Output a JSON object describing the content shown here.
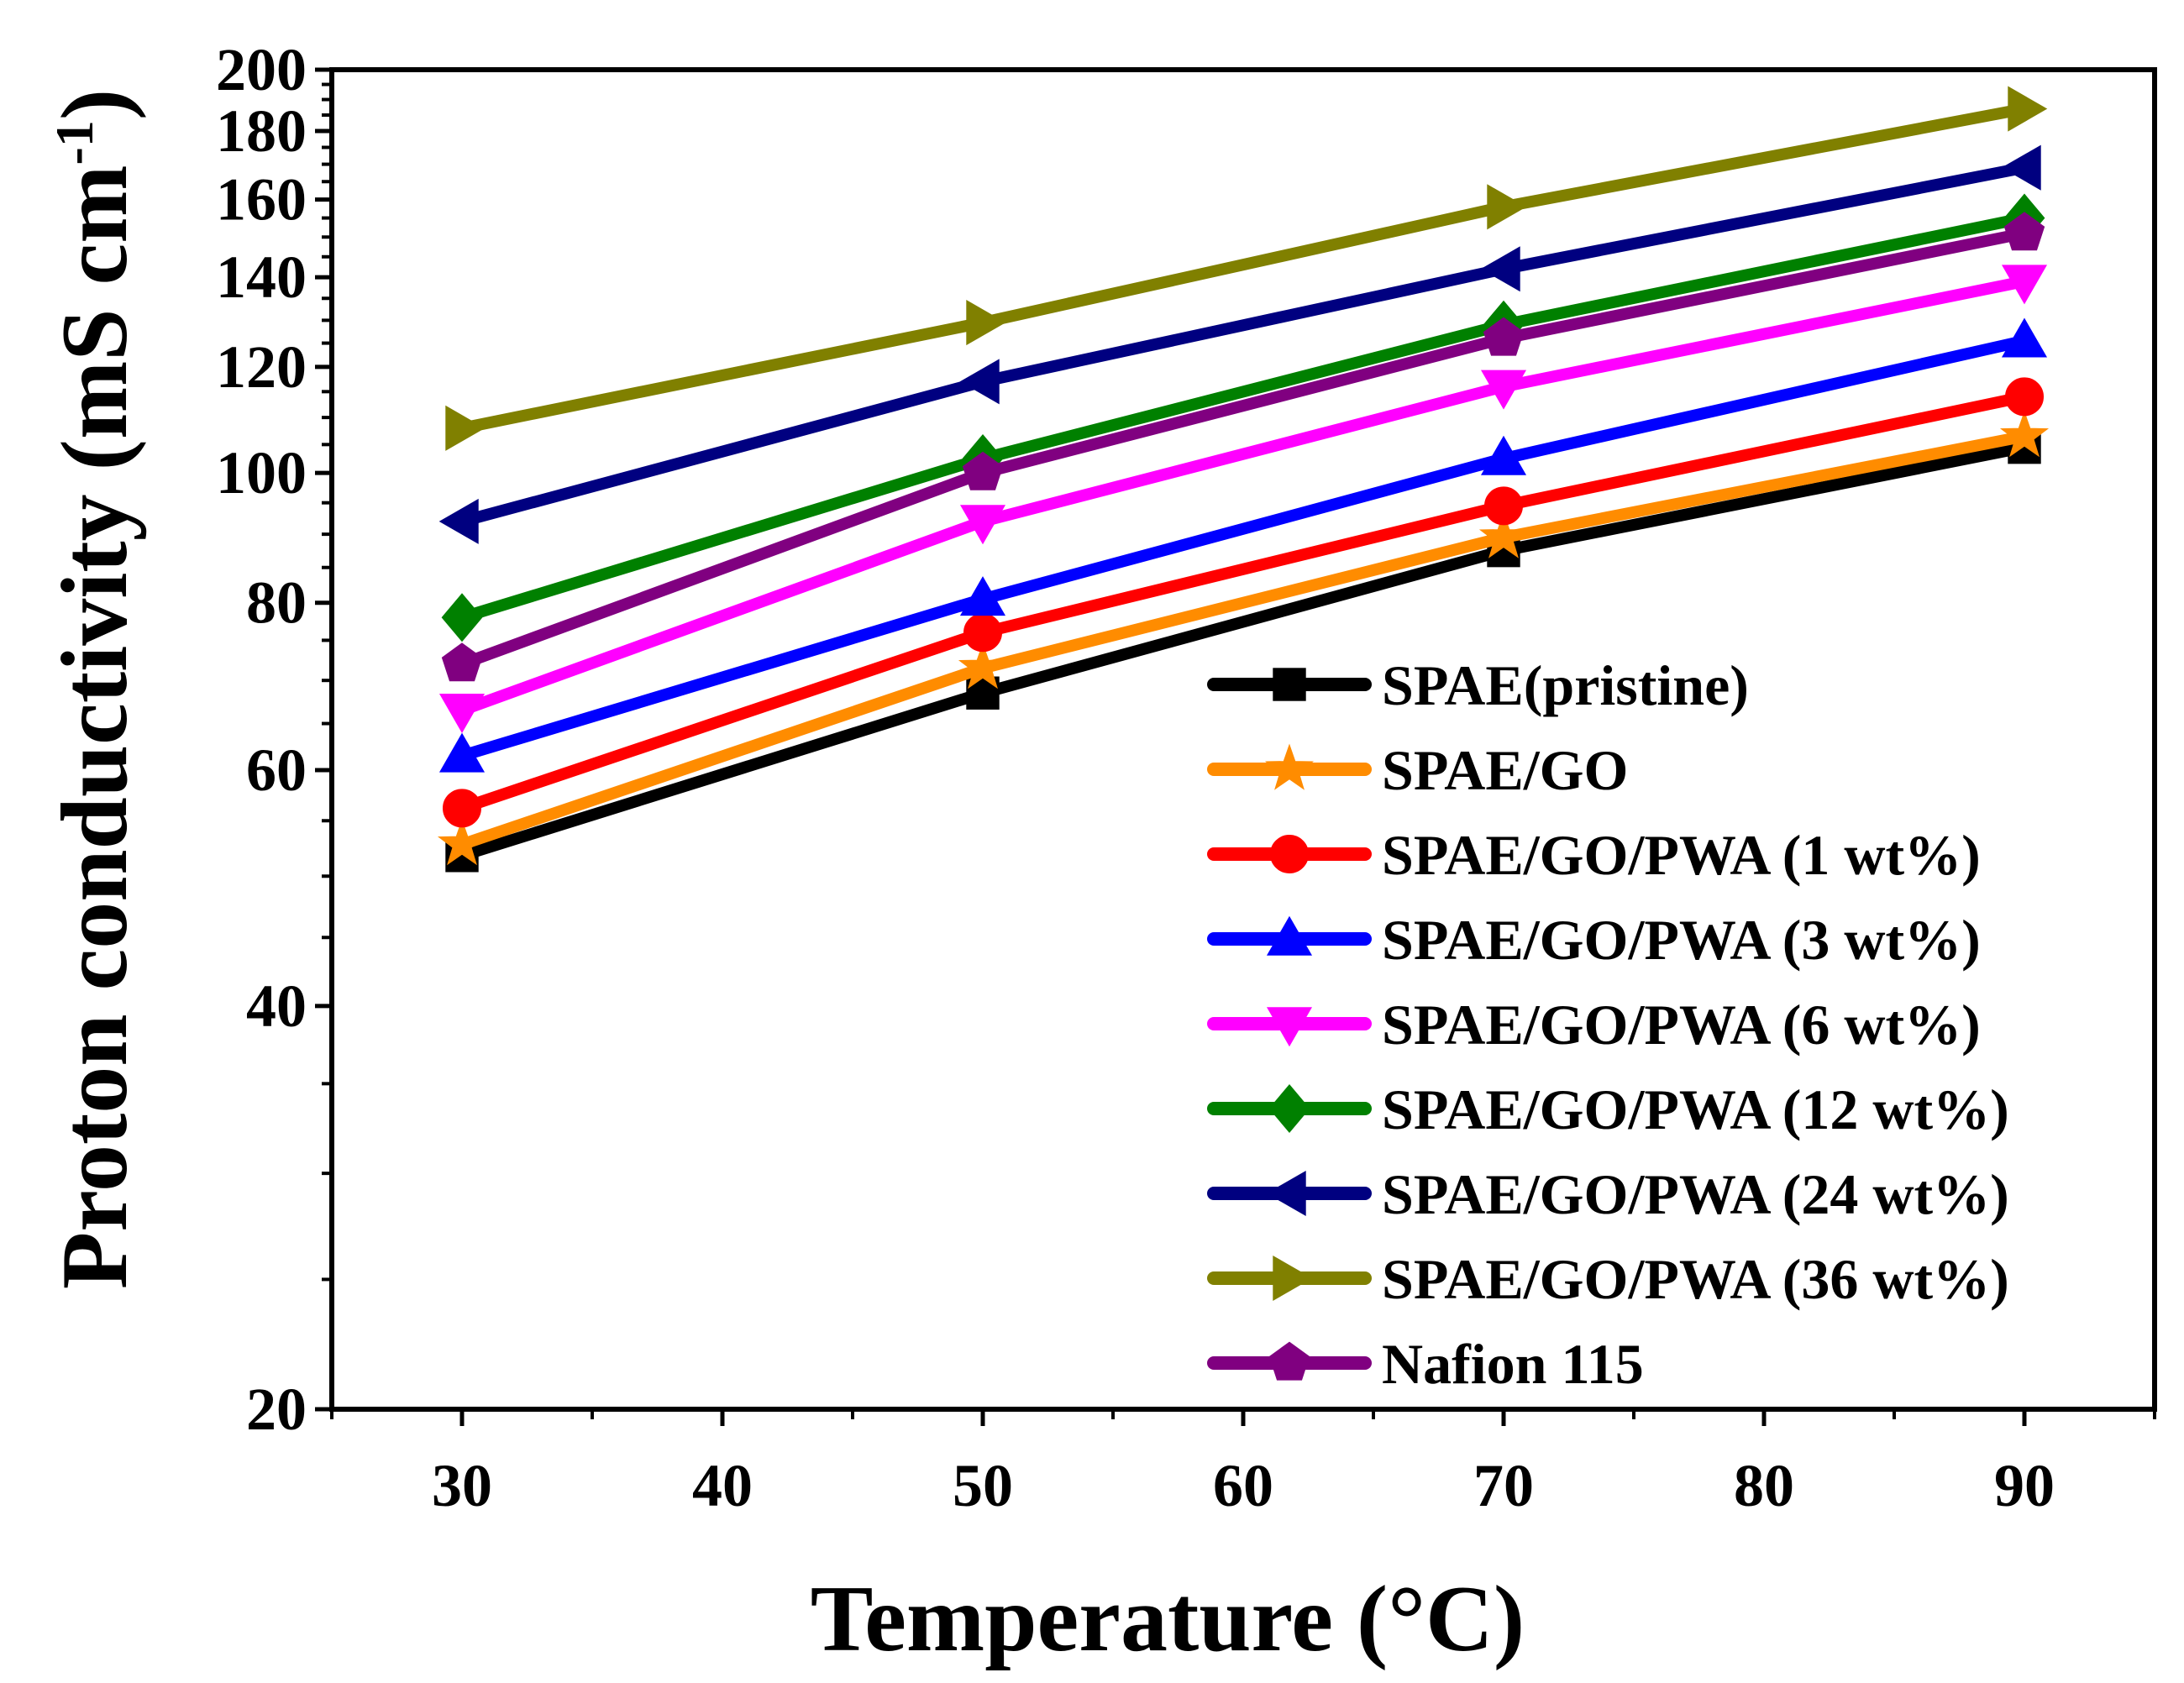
{
  "chart_data": {
    "type": "line",
    "title": "",
    "xlabel": "Temperature (°C)",
    "ylabel_main": "Proton conductivity (mS cm",
    "ylabel_sup": "-1",
    "ylabel_close": ")",
    "yscale": "log",
    "xlim": [
      25,
      95
    ],
    "ylim": [
      20,
      200
    ],
    "x_ticks": [
      30,
      40,
      50,
      60,
      70,
      80,
      90
    ],
    "y_ticks": [
      20,
      40,
      60,
      80,
      100,
      120,
      140,
      160,
      180,
      200
    ],
    "x": [
      30,
      50,
      70,
      90
    ],
    "legend_position": "lower-right",
    "series": [
      {
        "name": "SPAE(pristine)",
        "color": "#000000",
        "marker": "square",
        "values": [
          51.8,
          68.5,
          87.5,
          104.5
        ]
      },
      {
        "name": "SPAE/GO",
        "color": "#ff8c00",
        "marker": "star",
        "values": [
          52.8,
          71.5,
          89.5,
          106.5
        ]
      },
      {
        "name": "SPAE/GO/PWA (1 wt%)",
        "color": "#ff0000",
        "marker": "circle",
        "values": [
          56.2,
          76.0,
          94.5,
          114.0
        ]
      },
      {
        "name": "SPAE/GO/PWA (3 wt%)",
        "color": "#0000ff",
        "marker": "triangle-up",
        "values": [
          61.5,
          80.5,
          102.5,
          125.5
        ]
      },
      {
        "name": "SPAE/GO/PWA (6 wt%)",
        "color": "#ff00ff",
        "marker": "triangle-down",
        "values": [
          66.5,
          92.0,
          116.0,
          139.0
        ]
      },
      {
        "name": "SPAE/GO/PWA (12 wt%)",
        "color": "#008000",
        "marker": "diamond",
        "values": [
          78.0,
          102.5,
          129.0,
          155.0
        ]
      },
      {
        "name": "SPAE/GO/PWA (24 wt%)",
        "color": "#000080",
        "marker": "triangle-left",
        "values": [
          92.0,
          117.0,
          142.0,
          169.0
        ]
      },
      {
        "name": "SPAE/GO/PWA (36 wt%)",
        "color": "#808000",
        "marker": "triangle-right",
        "values": [
          108.0,
          129.5,
          158.0,
          187.0
        ]
      },
      {
        "name": "Nafion 115",
        "color": "#800080",
        "marker": "pentagon",
        "values": [
          72.0,
          100.0,
          126.0,
          151.0
        ]
      }
    ]
  }
}
